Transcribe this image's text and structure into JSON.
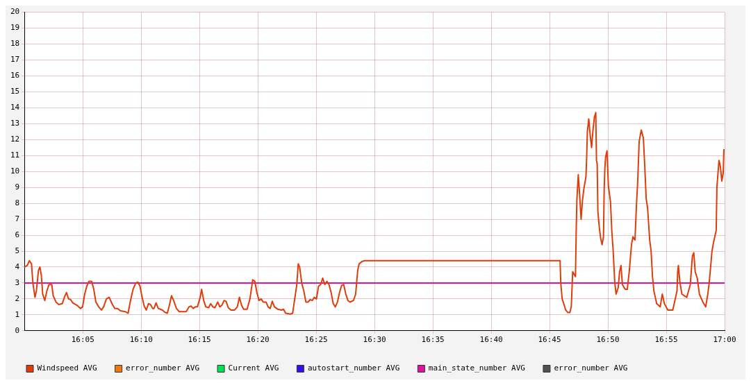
{
  "chart_data": {
    "type": "line",
    "xlim": [
      16,
      17
    ],
    "ylim": [
      0,
      20
    ],
    "xticks": [
      {
        "value": 16.083333,
        "label": "16:05"
      },
      {
        "value": 16.166667,
        "label": "16:10"
      },
      {
        "value": 16.25,
        "label": "16:15"
      },
      {
        "value": 16.333333,
        "label": "16:20"
      },
      {
        "value": 16.416667,
        "label": "16:25"
      },
      {
        "value": 16.5,
        "label": "16:30"
      },
      {
        "value": 16.583333,
        "label": "16:35"
      },
      {
        "value": 16.666667,
        "label": "16:40"
      },
      {
        "value": 16.75,
        "label": "16:45"
      },
      {
        "value": 16.833333,
        "label": "16:50"
      },
      {
        "value": 16.916667,
        "label": "16:55"
      },
      {
        "value": 17,
        "label": "17:00"
      }
    ],
    "yticks": [
      0,
      1,
      2,
      3,
      4,
      5,
      6,
      7,
      8,
      9,
      10,
      11,
      12,
      13,
      14,
      15,
      16,
      17,
      18,
      19,
      20
    ],
    "grid": true,
    "legend": "bottom",
    "line_style": "solid",
    "series": [
      {
        "name": "Windspeed AVG",
        "color": "#e03c0a",
        "x": [
          16.0,
          16.004,
          16.007,
          16.01,
          16.012,
          16.015,
          16.017,
          16.02,
          16.022,
          16.024,
          16.026,
          16.029,
          16.032,
          16.035,
          16.039,
          16.041,
          16.045,
          16.049,
          16.054,
          16.057,
          16.06,
          16.063,
          16.066,
          16.069,
          16.075,
          16.08,
          16.083,
          16.086,
          16.089,
          16.092,
          16.096,
          16.099,
          16.102,
          16.106,
          16.11,
          16.113,
          16.117,
          16.121,
          16.125,
          16.129,
          16.133,
          16.137,
          16.144,
          16.148,
          16.151,
          16.155,
          16.159,
          16.162,
          16.165,
          16.168,
          16.171,
          16.174,
          16.177,
          16.18,
          16.183,
          16.185,
          16.188,
          16.191,
          16.194,
          16.197,
          16.201,
          16.204,
          16.207,
          16.21,
          16.213,
          16.217,
          16.221,
          16.231,
          16.235,
          16.238,
          16.241,
          16.244,
          16.247,
          16.251,
          16.253,
          16.256,
          16.259,
          16.263,
          16.266,
          16.269,
          16.272,
          16.276,
          16.279,
          16.282,
          16.285,
          16.288,
          16.291,
          16.295,
          16.3,
          16.304,
          16.307,
          16.31,
          16.313,
          16.318,
          16.322,
          16.326,
          16.329,
          16.332,
          16.335,
          16.338,
          16.341,
          16.345,
          16.348,
          16.351,
          16.354,
          16.357,
          16.362,
          16.367,
          16.37,
          16.373,
          16.38,
          16.383,
          16.386,
          16.389,
          16.391,
          16.393,
          16.396,
          16.399,
          16.402,
          16.405,
          16.408,
          16.411,
          16.414,
          16.417,
          16.42,
          16.423,
          16.426,
          16.429,
          16.432,
          16.435,
          16.438,
          16.441,
          16.444,
          16.447,
          16.45,
          16.453,
          16.456,
          16.459,
          16.462,
          16.465,
          16.47,
          16.473,
          16.476,
          16.478,
          16.482,
          16.486,
          16.765,
          16.766,
          16.768,
          16.771,
          16.773,
          16.776,
          16.779,
          16.781,
          16.783,
          16.787,
          16.788,
          16.789,
          16.791,
          16.793,
          16.795,
          16.797,
          16.799,
          16.802,
          16.803,
          16.804,
          16.806,
          16.808,
          16.81,
          16.812,
          16.814,
          16.816,
          16.817,
          16.818,
          16.819,
          16.821,
          16.823,
          16.825,
          16.827,
          16.828,
          16.829,
          16.83,
          16.832,
          16.833,
          16.834,
          16.837,
          16.839,
          16.841,
          16.843,
          16.845,
          16.848,
          16.85,
          16.852,
          16.854,
          16.858,
          16.861,
          16.864,
          16.867,
          16.869,
          16.872,
          16.874,
          16.876,
          16.878,
          16.881,
          16.884,
          16.886,
          16.888,
          16.89,
          16.893,
          16.895,
          16.897,
          16.899,
          16.903,
          16.908,
          16.911,
          16.914,
          16.919,
          16.926,
          16.929,
          16.932,
          16.933,
          16.934,
          16.936,
          16.939,
          16.946,
          16.951,
          16.954,
          16.956,
          16.958,
          16.961,
          16.964,
          16.969,
          16.973,
          16.976,
          16.978,
          16.982,
          16.984,
          16.988,
          16.989,
          16.992,
          16.994,
          16.996,
          16.998,
          16.999
        ],
        "values": [
          4.0,
          4.1,
          4.4,
          4.2,
          3.0,
          2.1,
          2.5,
          3.8,
          4.0,
          3.5,
          2.3,
          1.9,
          2.5,
          2.9,
          2.9,
          2.2,
          1.8,
          1.65,
          1.7,
          2.1,
          2.4,
          2.0,
          1.95,
          1.75,
          1.6,
          1.4,
          1.5,
          2.3,
          2.8,
          3.1,
          3.1,
          2.6,
          1.8,
          1.5,
          1.3,
          1.5,
          2.0,
          2.1,
          1.7,
          1.4,
          1.4,
          1.25,
          1.2,
          1.1,
          1.8,
          2.6,
          3.0,
          3.05,
          2.8,
          2.1,
          1.55,
          1.3,
          1.7,
          1.65,
          1.4,
          1.4,
          1.75,
          1.4,
          1.35,
          1.3,
          1.15,
          1.1,
          1.6,
          2.2,
          1.9,
          1.4,
          1.2,
          1.2,
          1.5,
          1.55,
          1.4,
          1.5,
          1.5,
          2.1,
          2.6,
          1.9,
          1.5,
          1.45,
          1.7,
          1.5,
          1.45,
          1.8,
          1.5,
          1.6,
          1.9,
          1.85,
          1.45,
          1.3,
          1.3,
          1.5,
          2.1,
          1.6,
          1.35,
          1.35,
          2.0,
          3.2,
          3.1,
          2.4,
          1.9,
          2.0,
          1.8,
          1.8,
          1.5,
          1.4,
          1.85,
          1.5,
          1.35,
          1.3,
          1.35,
          1.1,
          1.05,
          1.1,
          2.0,
          2.9,
          4.2,
          4.0,
          3.0,
          2.5,
          1.8,
          1.8,
          1.95,
          1.9,
          2.1,
          2.0,
          2.8,
          2.9,
          3.3,
          2.9,
          3.1,
          2.9,
          2.4,
          1.7,
          1.5,
          1.8,
          2.4,
          2.85,
          2.9,
          2.3,
          1.9,
          1.8,
          1.9,
          2.3,
          3.8,
          4.2,
          4.35,
          4.4,
          4.4,
          3.0,
          2.0,
          1.6,
          1.3,
          1.15,
          1.15,
          1.5,
          3.7,
          3.4,
          6.2,
          8.2,
          9.8,
          8.5,
          7.0,
          8.2,
          8.9,
          9.7,
          10.9,
          12.5,
          13.3,
          12.3,
          11.5,
          12.6,
          13.4,
          13.7,
          10.7,
          10.5,
          7.5,
          6.5,
          5.8,
          5.4,
          5.9,
          8.9,
          10.2,
          10.9,
          11.3,
          10.2,
          9.1,
          8.1,
          6.2,
          4.9,
          3.1,
          2.3,
          2.7,
          3.7,
          4.1,
          2.9,
          2.6,
          2.6,
          3.8,
          5.4,
          5.9,
          5.7,
          7.8,
          9.5,
          11.9,
          12.6,
          12.1,
          10.3,
          8.3,
          7.7,
          5.7,
          5.0,
          3.4,
          2.5,
          1.7,
          1.5,
          2.3,
          1.7,
          1.3,
          1.3,
          1.9,
          2.5,
          3.7,
          4.1,
          3.1,
          2.3,
          2.1,
          2.9,
          4.7,
          4.9,
          3.7,
          3.3,
          2.3,
          1.8,
          1.5,
          2.3,
          3.0,
          5.0,
          5.5,
          6.3,
          9.0,
          10.7,
          10.3,
          9.4,
          9.9,
          11.4
        ]
      },
      {
        "name": "error_number AVG",
        "color": "#f07810"
      },
      {
        "name": "Current AVG",
        "color": "#00e050"
      },
      {
        "name": "autostart_number AVG",
        "color": "#3010f0"
      },
      {
        "name": "main_state_number AVG",
        "color": "#e010a0",
        "x": [
          16,
          17
        ],
        "values": [
          3,
          3
        ]
      },
      {
        "name": "error_number AVG",
        "color": "#505050"
      }
    ]
  }
}
